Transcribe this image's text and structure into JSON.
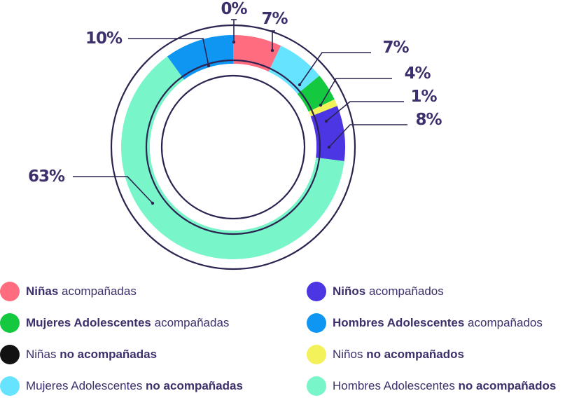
{
  "chart_data": {
    "type": "donut",
    "title": "",
    "series": [
      {
        "name": "Niñas acompañadas",
        "value": 7,
        "label": "7%",
        "color": "#ff6b7f"
      },
      {
        "name": "Mujeres Adolescentes no acompañadas",
        "value": 7,
        "label": "7%",
        "color": "#66e4ff"
      },
      {
        "name": "Mujeres Adolescentes acompañadas",
        "value": 4,
        "label": "4%",
        "color": "#14c93f"
      },
      {
        "name": "Niños no acompañados",
        "value": 1,
        "label": "1%",
        "color": "#f4f25a"
      },
      {
        "name": "Niños acompañados",
        "value": 8,
        "label": "8%",
        "color": "#4c36e3"
      },
      {
        "name": "Hombres Adolescentes no acompañados",
        "value": 63,
        "label": "63%",
        "color": "#79f6c9"
      },
      {
        "name": "Hombres Adolescentes acompañados",
        "value": 10,
        "label": "10%",
        "color": "#0f96f2"
      },
      {
        "name": "Niñas no acompañadas",
        "value": 0,
        "label": "0%",
        "color": "#121212"
      }
    ],
    "legend": [
      {
        "parts": [
          {
            "t": "Niñas",
            "b": true
          },
          {
            "t": " acompañadas",
            "b": false
          }
        ],
        "color": "#ff6b7f"
      },
      {
        "parts": [
          {
            "t": "Niños",
            "b": true
          },
          {
            "t": " acompañados",
            "b": false
          }
        ],
        "color": "#4c36e3"
      },
      {
        "parts": [
          {
            "t": "Mujeres Adolescentes",
            "b": true
          },
          {
            "t": " acompañadas",
            "b": false
          }
        ],
        "color": "#14c93f"
      },
      {
        "parts": [
          {
            "t": "Hombres Adolescentes",
            "b": true
          },
          {
            "t": " acompañados",
            "b": false
          }
        ],
        "color": "#0f96f2"
      },
      {
        "parts": [
          {
            "t": "Niñas ",
            "b": false
          },
          {
            "t": "no acompañadas",
            "b": true
          }
        ],
        "color": "#121212"
      },
      {
        "parts": [
          {
            "t": "Niños ",
            "b": false
          },
          {
            "t": "no acompañados",
            "b": true
          }
        ],
        "color": "#f4f25a"
      },
      {
        "parts": [
          {
            "t": "Mujeres Adolescentes ",
            "b": false
          },
          {
            "t": "no acompañadas",
            "b": true
          }
        ],
        "color": "#66e4ff"
      },
      {
        "parts": [
          {
            "t": "Hombres Adolescentes ",
            "b": false
          },
          {
            "t": "no acompañados",
            "b": true
          }
        ],
        "color": "#79f6c9"
      }
    ]
  }
}
